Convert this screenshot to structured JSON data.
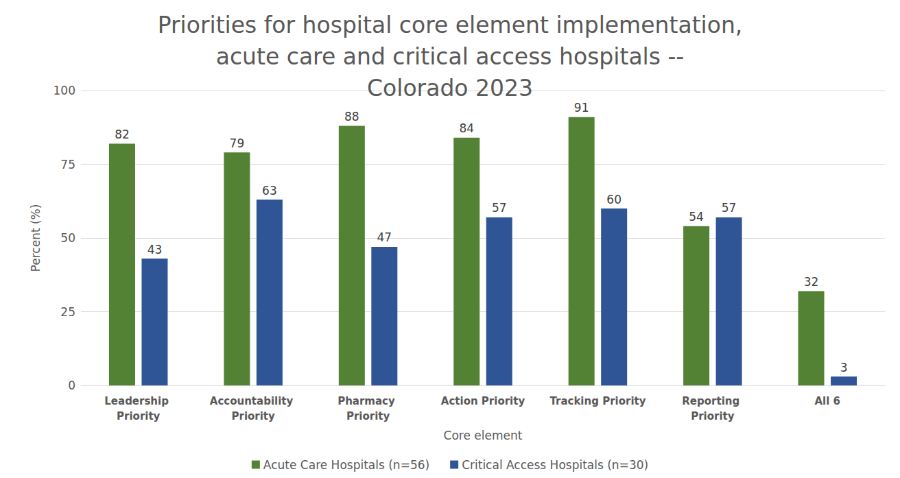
{
  "chart_data": {
    "type": "bar",
    "title": "Priorities for hospital core element implementation, acute care and critical access hospitals -- Colorado 2023",
    "x_label": "Core element",
    "y_label": "Percent (%)",
    "categories": [
      "Leadership Priority",
      "Accountability Priority",
      "Pharmacy Priority",
      "Action Priority",
      "Tracking Priority",
      "Reporting Priority",
      "All 6"
    ],
    "series": [
      {
        "name": "Acute Care Hospitals (n=56)",
        "color": "#548235",
        "values": [
          82,
          79,
          88,
          84,
          91,
          54,
          32
        ]
      },
      {
        "name": "Critical Access Hospitals (n=30)",
        "color": "#2F5597",
        "values": [
          43,
          63,
          47,
          57,
          60,
          57,
          3
        ]
      }
    ],
    "ylim": [
      0,
      100
    ],
    "yticks": [
      0,
      25,
      50,
      75,
      100
    ],
    "grid": true,
    "legend": "bottom",
    "data_labels": true
  }
}
